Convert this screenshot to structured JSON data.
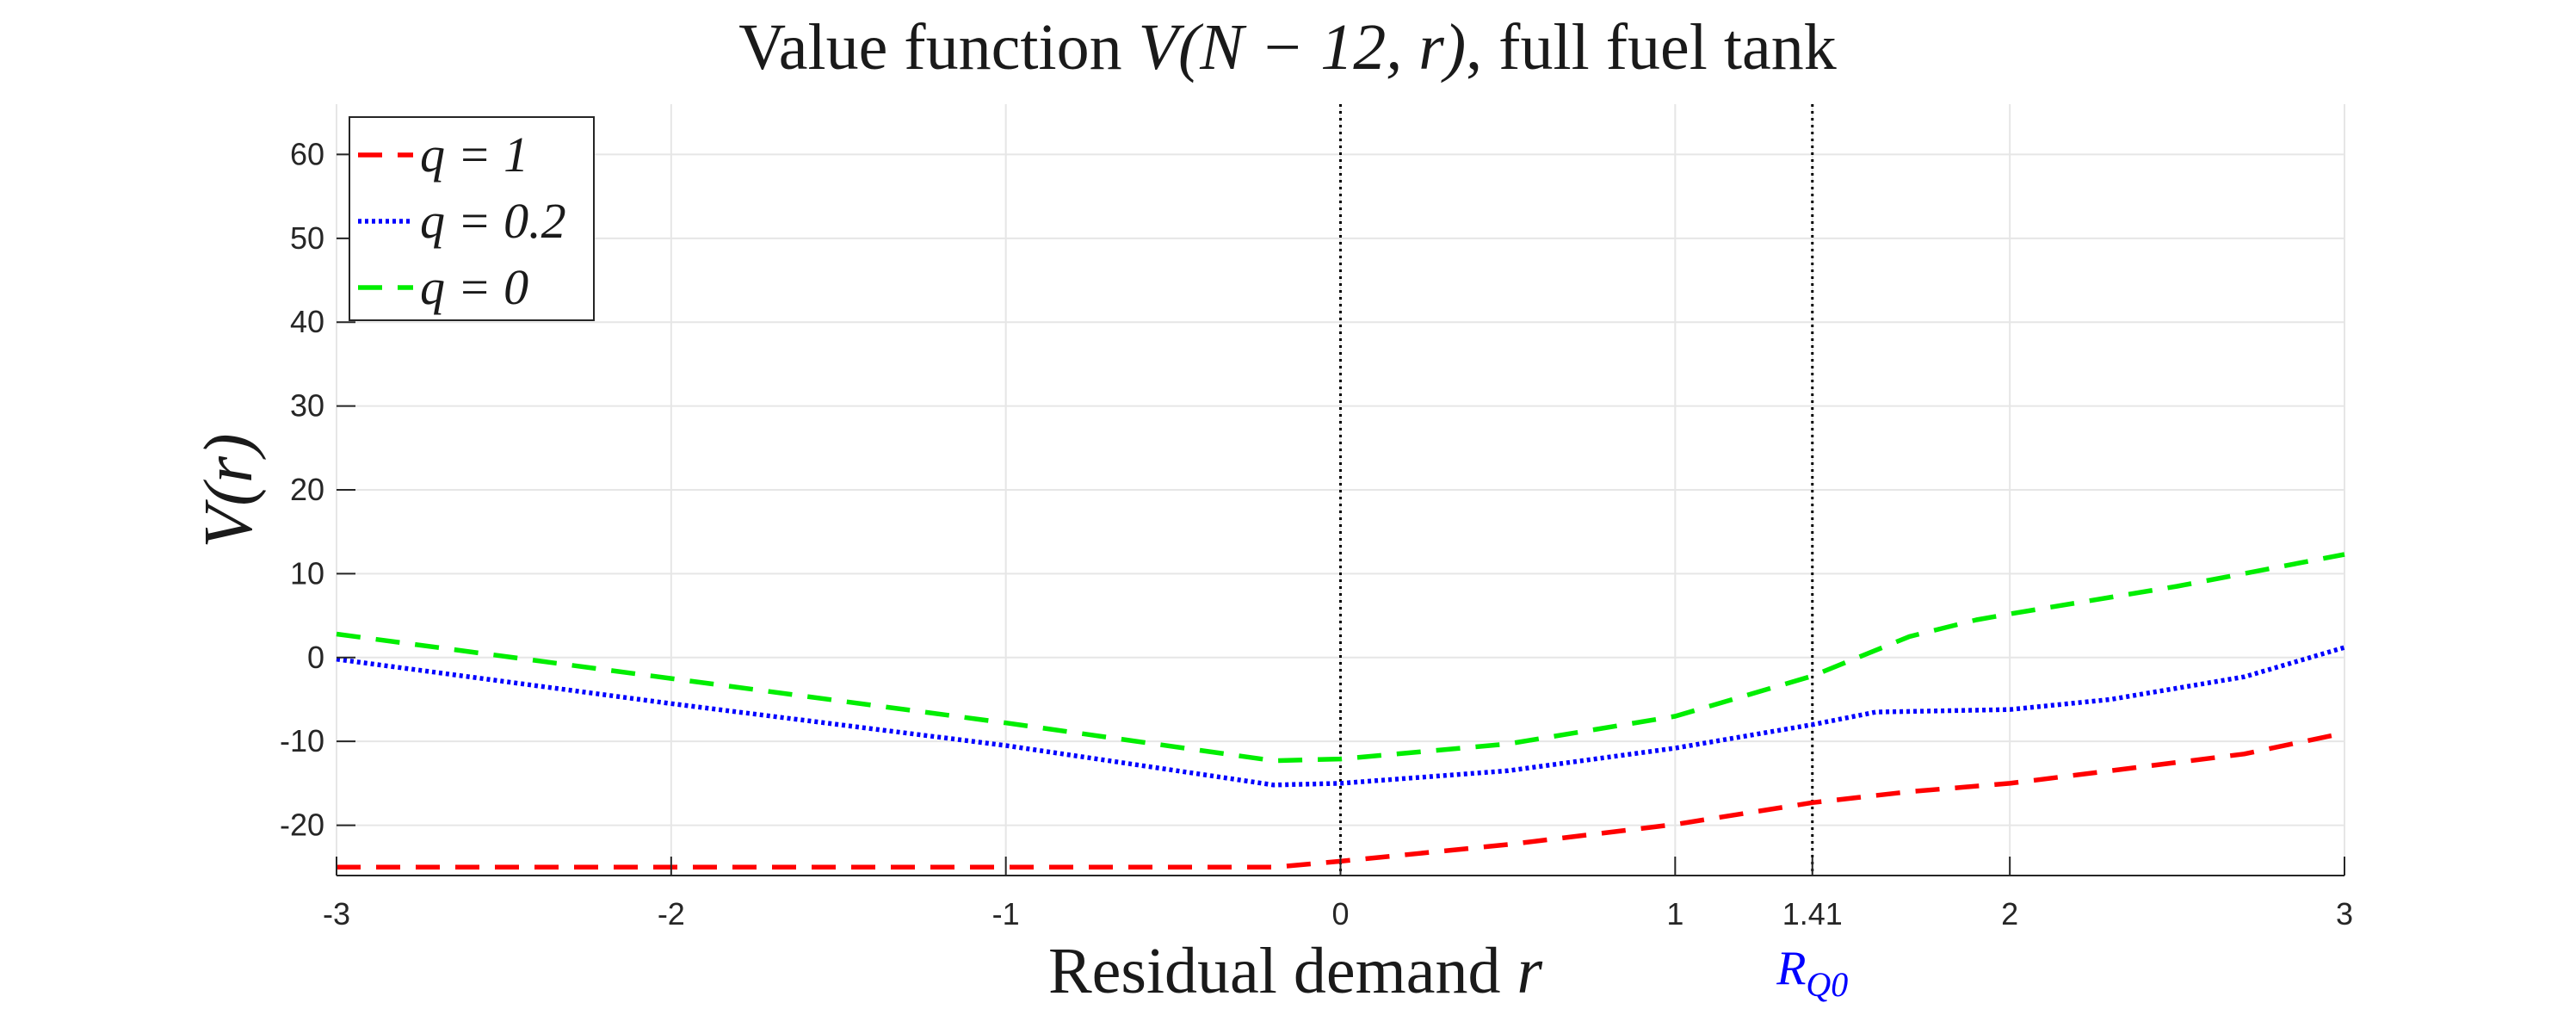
{
  "chart_data": {
    "type": "line",
    "title_prefix": "Value function",
    "title_math": "V(N − 12, r)",
    "title_suffix": ", full fuel tank",
    "xlabel": "Residual demand",
    "xlabel_var": "r",
    "ylabel": "V(r)",
    "xlim": [
      -3,
      3
    ],
    "ylim": [
      -26,
      66
    ],
    "xticks": [
      -3,
      -2,
      -1,
      0,
      1,
      1.41,
      2,
      3
    ],
    "xtick_labels": [
      "-3",
      "-2",
      "-1",
      "0",
      "1",
      "1.41",
      "2",
      "3"
    ],
    "yticks": [
      -20,
      -10,
      0,
      10,
      20,
      30,
      40,
      50,
      60
    ],
    "ytick_labels": [
      "-20",
      "-10",
      "0",
      "10",
      "20",
      "30",
      "40",
      "50",
      "60"
    ],
    "grid": true,
    "legend_position": "top-left",
    "vlines": [
      0,
      1.41
    ],
    "annotation": {
      "text": "R",
      "subscript": "Q0",
      "x": 1.41,
      "color": "#0000ff"
    },
    "series": [
      {
        "name": "q = 1",
        "color": "#ff0000",
        "style": "dashed",
        "x": [
          -3,
          -2,
          -1,
          -0.2,
          0,
          0.5,
          1,
          1.41,
          1.7,
          2,
          2.3,
          2.7,
          3
        ],
        "y": [
          -25,
          -25,
          -25,
          -25,
          -24.3,
          -22.3,
          -19.9,
          -17.3,
          -16.0,
          -15.0,
          -13.5,
          -11.5,
          -9.0
        ]
      },
      {
        "name": "q = 0.2",
        "color": "#0000ff",
        "style": "dotted",
        "x": [
          -3,
          -2,
          -1,
          -0.2,
          0,
          0.5,
          1,
          1.41,
          1.6,
          2,
          2.3,
          2.7,
          3
        ],
        "y": [
          -0.2,
          -5.5,
          -10.5,
          -15.2,
          -15.0,
          -13.5,
          -10.8,
          -8.0,
          -6.5,
          -6.2,
          -5.0,
          -2.3,
          1.2
        ]
      },
      {
        "name": "q = 0",
        "color": "#00ee00",
        "style": "dashed",
        "x": [
          -3,
          -2,
          -1,
          -0.2,
          0,
          0.5,
          1,
          1.41,
          1.7,
          1.9,
          2,
          2.5,
          3
        ],
        "y": [
          2.8,
          -2.5,
          -7.8,
          -12.3,
          -12.1,
          -10.3,
          -7.0,
          -2.2,
          2.5,
          4.5,
          5.2,
          8.5,
          12.3
        ]
      }
    ]
  }
}
